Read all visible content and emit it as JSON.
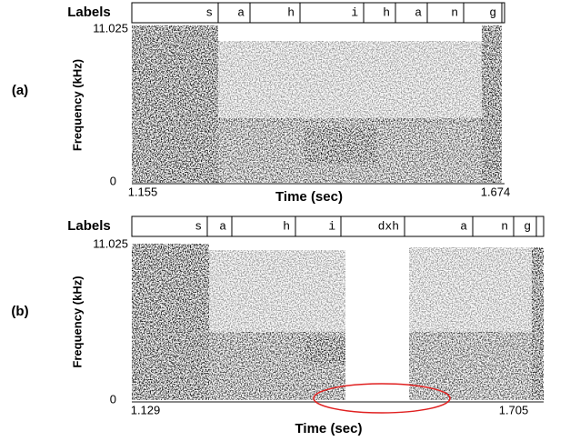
{
  "panels": [
    {
      "tag": "(a)",
      "labels_heading": "Labels",
      "segments": [
        "s",
        "a",
        "h",
        "i",
        "h",
        "a",
        "n",
        "g"
      ],
      "y_axis_title": "Frequency (kHz)",
      "y_ticks": [
        "11.025",
        "0"
      ],
      "x_ticks": [
        "1.155",
        "1.674"
      ],
      "x_axis_title": "Time (sec)"
    },
    {
      "tag": "(b)",
      "labels_heading": "Labels",
      "segments": [
        "s",
        "a",
        "h",
        "i",
        "dxh",
        "a",
        "n",
        "g"
      ],
      "y_axis_title": "Frequency (kHz)",
      "y_ticks": [
        "11.025",
        "0"
      ],
      "x_ticks": [
        "1.129",
        "1.705"
      ],
      "x_axis_title": "Time (sec)"
    }
  ]
}
